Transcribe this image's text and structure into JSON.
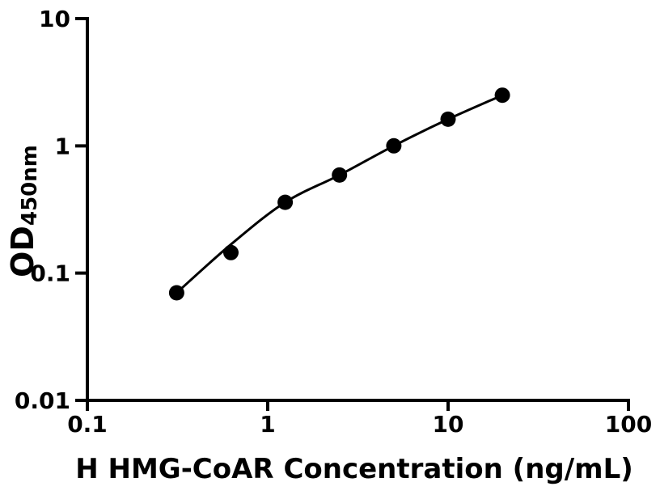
{
  "chart_data": {
    "type": "scatter",
    "title": "",
    "xlabel": "H HMG-CoAR Concentration (ng/mL)",
    "ylabel_main": "OD",
    "ylabel_sub": "450nm",
    "xscale": "log",
    "yscale": "log",
    "xlim": [
      0.1,
      100
    ],
    "ylim": [
      0.01,
      10
    ],
    "grid": false,
    "x": [
      0.3125,
      0.625,
      1.25,
      2.5,
      5,
      10,
      20
    ],
    "y": [
      0.07,
      0.145,
      0.36,
      0.59,
      1.0,
      1.62,
      2.5
    ],
    "fit_curve_y": [
      0.07,
      0.168,
      0.36,
      0.59,
      1.0,
      1.62,
      2.5
    ],
    "x_tick_values": [
      0.1,
      1,
      10,
      100
    ],
    "x_tick_labels": [
      "0.1",
      "1",
      "10",
      "100"
    ],
    "y_tick_values": [
      0.01,
      0.1,
      1,
      10
    ],
    "y_tick_labels": [
      "0.01",
      "0.1",
      "1",
      "10"
    ],
    "colors": {
      "axis": "#000000",
      "marker": "#000000",
      "curve": "#000000",
      "text": "#000000",
      "background": "#ffffff"
    }
  }
}
